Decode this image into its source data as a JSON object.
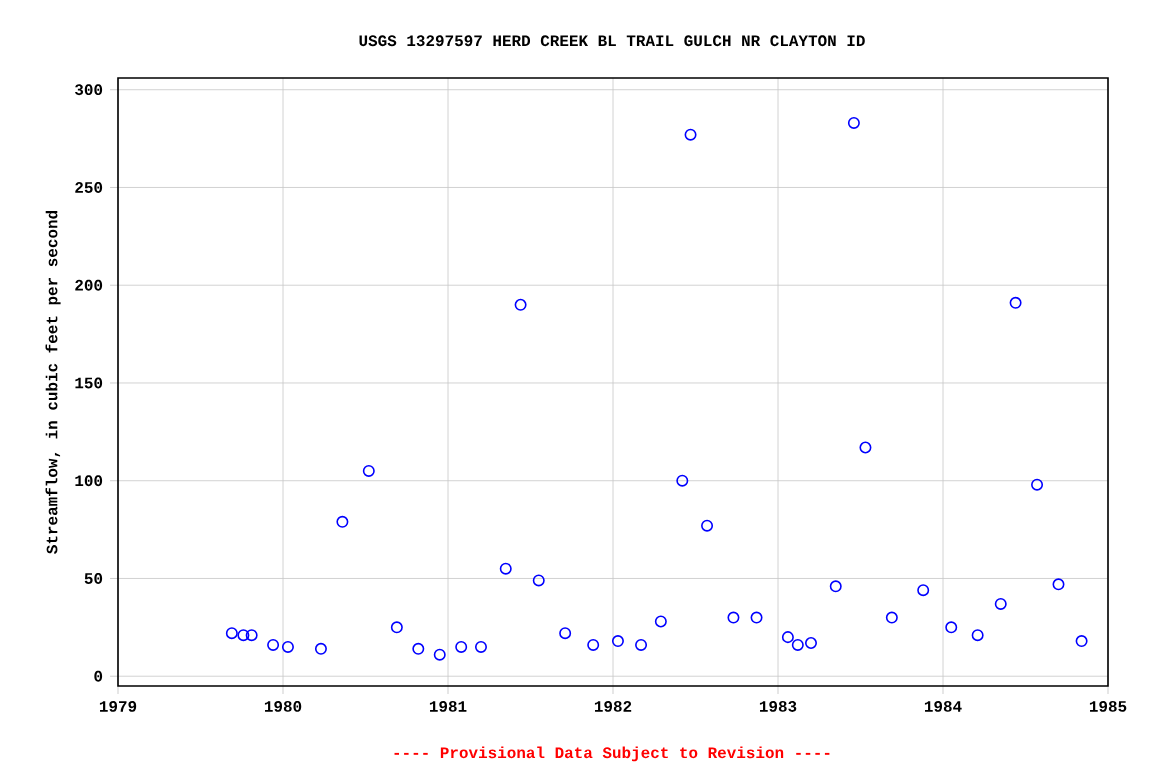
{
  "chart_data": {
    "type": "scatter",
    "title": "USGS 13297597 HERD CREEK BL TRAIL GULCH NR CLAYTON ID",
    "ylabel": "Streamflow, in cubic feet per second",
    "annotations": [
      "---- Provisional Data Subject to Revision ----"
    ],
    "x": [
      1979.69,
      1979.76,
      1979.81,
      1979.94,
      1980.03,
      1980.23,
      1980.36,
      1980.52,
      1980.69,
      1980.82,
      1980.95,
      1981.08,
      1981.2,
      1981.35,
      1981.44,
      1981.55,
      1981.71,
      1981.88,
      1982.03,
      1982.17,
      1982.29,
      1982.42,
      1982.47,
      1982.57,
      1982.73,
      1982.87,
      1983.06,
      1983.12,
      1983.2,
      1983.35,
      1983.46,
      1983.53,
      1983.69,
      1983.88,
      1984.05,
      1984.21,
      1984.35,
      1984.44,
      1984.57,
      1984.7,
      1984.84
    ],
    "values": [
      22,
      21,
      21,
      16,
      15,
      14,
      79,
      105,
      25,
      14,
      11,
      15,
      15,
      55,
      190,
      49,
      22,
      16,
      18,
      16,
      28,
      100,
      277,
      77,
      30,
      30,
      20,
      16,
      17,
      46,
      283,
      117,
      30,
      44,
      25,
      21,
      37,
      191,
      98,
      47,
      18
    ],
    "color": "#0000ff",
    "marker": "circle",
    "grid": true,
    "xlim": [
      1979,
      1985
    ],
    "ylim": [
      -5,
      306
    ],
    "xticks": [
      1979,
      1980,
      1981,
      1982,
      1983,
      1984,
      1985
    ],
    "yticks": [
      0,
      50,
      100,
      150,
      200,
      250,
      300
    ]
  }
}
